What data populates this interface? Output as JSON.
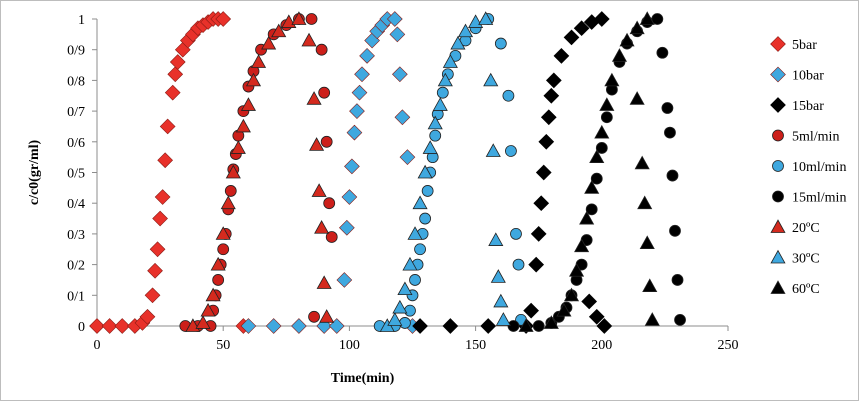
{
  "chart_data": {
    "type": "scatter",
    "xlabel": "Time(min)",
    "ylabel": "c/c0(gr/ml)",
    "xlim": [
      0,
      250
    ],
    "ylim": [
      0,
      1
    ],
    "x_ticks": [
      "0",
      "50",
      "100",
      "150",
      "200",
      "250"
    ],
    "y_ticks": [
      "0",
      "0/1",
      "0/2",
      "0/3",
      "0/4",
      "0/5",
      "0/6",
      "0/7",
      "0/8",
      "0/9",
      "1"
    ],
    "grid": false,
    "legend_position": "right",
    "series": [
      {
        "name": "5bar",
        "color": "#e8312a",
        "marker": "diamond",
        "points": [
          [
            0,
            0
          ],
          [
            5,
            0
          ],
          [
            10,
            0
          ],
          [
            15,
            0
          ],
          [
            18,
            0.01
          ],
          [
            20,
            0.03
          ],
          [
            22,
            0.1
          ],
          [
            23,
            0.18
          ],
          [
            24,
            0.25
          ],
          [
            25,
            0.35
          ],
          [
            26,
            0.42
          ],
          [
            27,
            0.54
          ],
          [
            28,
            0.65
          ],
          [
            30,
            0.76
          ],
          [
            31,
            0.82
          ],
          [
            32,
            0.86
          ],
          [
            34,
            0.9
          ],
          [
            36,
            0.93
          ],
          [
            38,
            0.95
          ],
          [
            40,
            0.97
          ],
          [
            42,
            0.98
          ],
          [
            44,
            0.99
          ],
          [
            46,
            1
          ],
          [
            48,
            1
          ],
          [
            50,
            1
          ],
          [
            58,
            0
          ]
        ]
      },
      {
        "name": "10bar",
        "color": "#3fa8df",
        "marker": "diamond",
        "points": [
          [
            60,
            0
          ],
          [
            70,
            0
          ],
          [
            80,
            0
          ],
          [
            90,
            0
          ],
          [
            95,
            0
          ],
          [
            98,
            0.15
          ],
          [
            99,
            0.32
          ],
          [
            100,
            0.42
          ],
          [
            101,
            0.52
          ],
          [
            102,
            0.63
          ],
          [
            103,
            0.7
          ],
          [
            104,
            0.76
          ],
          [
            105,
            0.82
          ],
          [
            107,
            0.88
          ],
          [
            109,
            0.93
          ],
          [
            111,
            0.96
          ],
          [
            113,
            0.98
          ],
          [
            115,
            1
          ],
          [
            118,
            1
          ],
          [
            119,
            0.95
          ],
          [
            120,
            0.82
          ],
          [
            121,
            0.68
          ],
          [
            123,
            0.55
          ],
          [
            125,
            0
          ]
        ]
      },
      {
        "name": "15bar",
        "color": "#000000",
        "marker": "diamond",
        "points": [
          [
            128,
            0
          ],
          [
            140,
            0
          ],
          [
            155,
            0
          ],
          [
            170,
            0
          ],
          [
            172,
            0.05
          ],
          [
            174,
            0.2
          ],
          [
            175,
            0.3
          ],
          [
            176,
            0.4
          ],
          [
            177,
            0.5
          ],
          [
            178,
            0.6
          ],
          [
            179,
            0.68
          ],
          [
            180,
            0.75
          ],
          [
            181,
            0.8
          ],
          [
            184,
            0.88
          ],
          [
            188,
            0.94
          ],
          [
            192,
            0.97
          ],
          [
            196,
            0.99
          ],
          [
            200,
            1
          ],
          [
            195,
            0.08
          ],
          [
            198,
            0.03
          ],
          [
            201,
            0
          ]
        ]
      },
      {
        "name": "5ml/min",
        "color": "#cc1f1a",
        "marker": "circle",
        "points": [
          [
            35,
            0
          ],
          [
            40,
            0
          ],
          [
            45,
            0
          ],
          [
            46,
            0.05
          ],
          [
            47,
            0.1
          ],
          [
            48,
            0.15
          ],
          [
            49,
            0.2
          ],
          [
            50,
            0.25
          ],
          [
            51,
            0.3
          ],
          [
            52,
            0.38
          ],
          [
            53,
            0.44
          ],
          [
            54,
            0.51
          ],
          [
            55,
            0.56
          ],
          [
            56,
            0.62
          ],
          [
            58,
            0.7
          ],
          [
            60,
            0.78
          ],
          [
            62,
            0.83
          ],
          [
            65,
            0.9
          ],
          [
            70,
            0.95
          ],
          [
            75,
            0.98
          ],
          [
            80,
            1
          ],
          [
            85,
            1
          ],
          [
            89,
            0.9
          ],
          [
            90,
            0.76
          ],
          [
            91,
            0.6
          ],
          [
            92,
            0.4
          ],
          [
            93,
            0.29
          ],
          [
            86,
            0.03
          ]
        ]
      },
      {
        "name": "10ml/min",
        "color": "#3fa8df",
        "marker": "circle",
        "points": [
          [
            112,
            0
          ],
          [
            118,
            0
          ],
          [
            122,
            0.01
          ],
          [
            124,
            0.05
          ],
          [
            125,
            0.1
          ],
          [
            126,
            0.15
          ],
          [
            127,
            0.2
          ],
          [
            128,
            0.25
          ],
          [
            129,
            0.3
          ],
          [
            130,
            0.35
          ],
          [
            131,
            0.44
          ],
          [
            132,
            0.5
          ],
          [
            133,
            0.55
          ],
          [
            134,
            0.62
          ],
          [
            135,
            0.69
          ],
          [
            137,
            0.76
          ],
          [
            139,
            0.82
          ],
          [
            142,
            0.88
          ],
          [
            146,
            0.93
          ],
          [
            150,
            0.97
          ],
          [
            155,
            1
          ],
          [
            160,
            0.92
          ],
          [
            163,
            0.75
          ],
          [
            164,
            0.57
          ],
          [
            166,
            0.3
          ],
          [
            167,
            0.2
          ],
          [
            168,
            0.02
          ]
        ]
      },
      {
        "name": "15ml/min",
        "color": "#000000",
        "marker": "circle",
        "points": [
          [
            165,
            0
          ],
          [
            175,
            0
          ],
          [
            180,
            0.01
          ],
          [
            183,
            0.03
          ],
          [
            186,
            0.06
          ],
          [
            188,
            0.1
          ],
          [
            190,
            0.15
          ],
          [
            192,
            0.2
          ],
          [
            194,
            0.28
          ],
          [
            196,
            0.38
          ],
          [
            198,
            0.48
          ],
          [
            200,
            0.58
          ],
          [
            202,
            0.68
          ],
          [
            204,
            0.77
          ],
          [
            207,
            0.86
          ],
          [
            210,
            0.92
          ],
          [
            214,
            0.96
          ],
          [
            218,
            0.99
          ],
          [
            222,
            1
          ],
          [
            224,
            0.89
          ],
          [
            226,
            0.71
          ],
          [
            227,
            0.63
          ],
          [
            228,
            0.49
          ],
          [
            229,
            0.31
          ],
          [
            230,
            0.15
          ],
          [
            231,
            0.02
          ]
        ]
      },
      {
        "name": "20ºC",
        "color": "#d42a1e",
        "marker": "triangle",
        "points": [
          [
            38,
            0
          ],
          [
            42,
            0.01
          ],
          [
            44,
            0.05
          ],
          [
            46,
            0.1
          ],
          [
            48,
            0.2
          ],
          [
            50,
            0.3
          ],
          [
            52,
            0.4
          ],
          [
            54,
            0.5
          ],
          [
            56,
            0.58
          ],
          [
            58,
            0.65
          ],
          [
            60,
            0.72
          ],
          [
            62,
            0.8
          ],
          [
            64,
            0.86
          ],
          [
            68,
            0.92
          ],
          [
            72,
            0.96
          ],
          [
            76,
            0.99
          ],
          [
            80,
            1
          ],
          [
            84,
            0.93
          ],
          [
            86,
            0.74
          ],
          [
            87,
            0.59
          ],
          [
            88,
            0.44
          ],
          [
            89,
            0.32
          ],
          [
            90,
            0.14
          ],
          [
            91,
            0.03
          ]
        ]
      },
      {
        "name": "30ºC",
        "color": "#3fa8df",
        "marker": "triangle",
        "points": [
          [
            115,
            0
          ],
          [
            118,
            0.02
          ],
          [
            120,
            0.06
          ],
          [
            122,
            0.12
          ],
          [
            124,
            0.2
          ],
          [
            126,
            0.3
          ],
          [
            128,
            0.4
          ],
          [
            130,
            0.5
          ],
          [
            132,
            0.58
          ],
          [
            134,
            0.66
          ],
          [
            136,
            0.72
          ],
          [
            138,
            0.8
          ],
          [
            140,
            0.86
          ],
          [
            143,
            0.92
          ],
          [
            146,
            0.96
          ],
          [
            150,
            0.99
          ],
          [
            154,
            1
          ],
          [
            156,
            0.8
          ],
          [
            157,
            0.57
          ],
          [
            158,
            0.28
          ],
          [
            159,
            0.16
          ],
          [
            160,
            0.08
          ],
          [
            161,
            0.02
          ]
        ]
      },
      {
        "name": "60ºC",
        "color": "#000000",
        "marker": "triangle",
        "points": [
          [
            170,
            0
          ],
          [
            180,
            0.01
          ],
          [
            185,
            0.05
          ],
          [
            188,
            0.1
          ],
          [
            190,
            0.18
          ],
          [
            192,
            0.26
          ],
          [
            194,
            0.35
          ],
          [
            196,
            0.45
          ],
          [
            198,
            0.55
          ],
          [
            200,
            0.63
          ],
          [
            202,
            0.72
          ],
          [
            204,
            0.8
          ],
          [
            207,
            0.88
          ],
          [
            210,
            0.93
          ],
          [
            214,
            0.97
          ],
          [
            218,
            1
          ],
          [
            214,
            0.74
          ],
          [
            216,
            0.53
          ],
          [
            217,
            0.4
          ],
          [
            218,
            0.27
          ],
          [
            219,
            0.13
          ],
          [
            220,
            0.02
          ]
        ]
      }
    ]
  }
}
